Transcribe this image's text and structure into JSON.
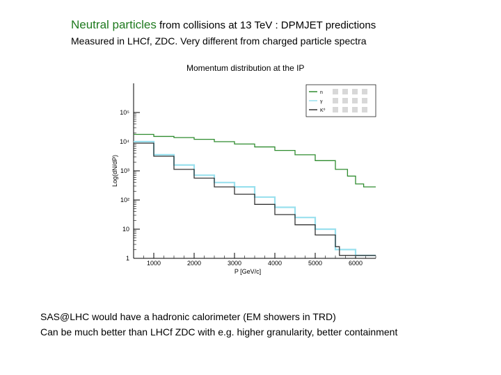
{
  "slide": {
    "title_highlight": "Neutral particles",
    "title_rest": " from collisions at 13 TeV : DPMJET predictions",
    "subtitle": "Measured in LHCf, ZDC.  Very different from charged particle spectra",
    "notes": [
      "SAS@LHC would have a hadronic calorimeter (EM showers in TRD)",
      "Can be much better than LHCf ZDC with e.g. higher granularity, better containment"
    ],
    "highlight_color": "#1f7a1f"
  },
  "chart_data": {
    "type": "line",
    "title": "Momentum distribution at the IP",
    "xlabel": "P [GeV/c]",
    "ylabel": "Log(dN/dP)",
    "xlim": [
      500,
      6500
    ],
    "ylim_log10": [
      0,
      6
    ],
    "x_ticks": [
      1000,
      2000,
      3000,
      4000,
      5000,
      6000
    ],
    "x_tick_labels": [
      "1000",
      "2000",
      "3000",
      "4000",
      "5000",
      "6000"
    ],
    "y_ticks_log10": [
      0,
      1,
      2,
      3,
      4,
      5
    ],
    "y_tick_labels": [
      "1",
      "10",
      "10²",
      "10³",
      "10⁴",
      "10⁵"
    ],
    "legend_position": "top-right",
    "series": [
      {
        "name": "n",
        "legend": "n",
        "color": "#2e8b2e",
        "x": [
          500,
          1000,
          1500,
          2000,
          2500,
          3000,
          3500,
          4000,
          4500,
          5000,
          5500,
          5800,
          6000,
          6200,
          6500
        ],
        "log10_y": [
          4.25,
          4.18,
          4.14,
          4.08,
          4.0,
          3.92,
          3.82,
          3.7,
          3.55,
          3.35,
          3.05,
          2.82,
          2.55,
          2.45,
          2.45
        ]
      },
      {
        "name": "gamma",
        "legend": "γ",
        "color": "#99e0ee",
        "x": [
          500,
          1000,
          1500,
          2000,
          2500,
          3000,
          3500,
          4000,
          4500,
          5000,
          5500,
          6000
        ],
        "log10_y": [
          4.0,
          3.55,
          3.2,
          2.85,
          2.6,
          2.45,
          2.1,
          1.75,
          1.4,
          1.0,
          0.3,
          0.1
        ]
      },
      {
        "name": "K0",
        "legend": "K⁰",
        "color": "#333333",
        "x": [
          500,
          1000,
          1500,
          2000,
          2500,
          3000,
          3500,
          4000,
          4500,
          5000,
          5500,
          5600
        ],
        "log10_y": [
          3.95,
          3.5,
          3.05,
          2.75,
          2.45,
          2.2,
          1.85,
          1.5,
          1.15,
          0.8,
          0.4,
          0.1
        ]
      }
    ]
  }
}
